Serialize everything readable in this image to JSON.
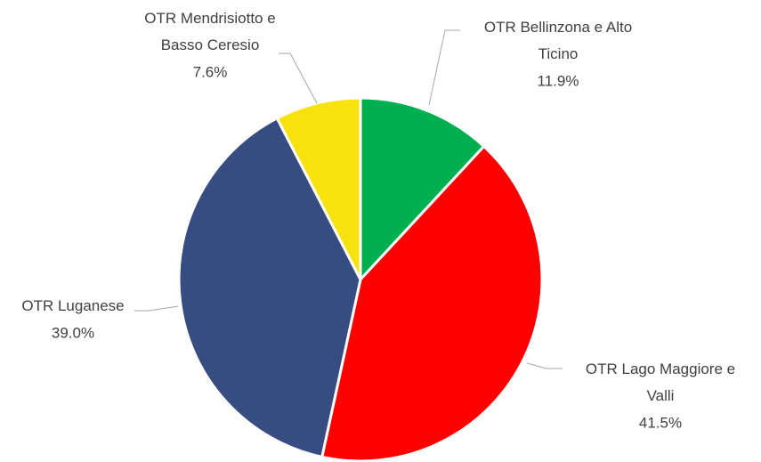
{
  "chart_data": {
    "type": "pie",
    "categories": [
      "OTR Bellinzona e Alto Ticino",
      "OTR Lago Maggiore e Valli",
      "OTR Luganese",
      "OTR Mendrisiotto e Basso Ceresio"
    ],
    "values": [
      11.9,
      41.5,
      39.0,
      7.6
    ],
    "value_labels": [
      "11.9%",
      "41.5%",
      "39.0%",
      "7.6%"
    ],
    "colors": [
      "#00b050",
      "#ff0000",
      "#374c80",
      "#f8e20d"
    ]
  }
}
